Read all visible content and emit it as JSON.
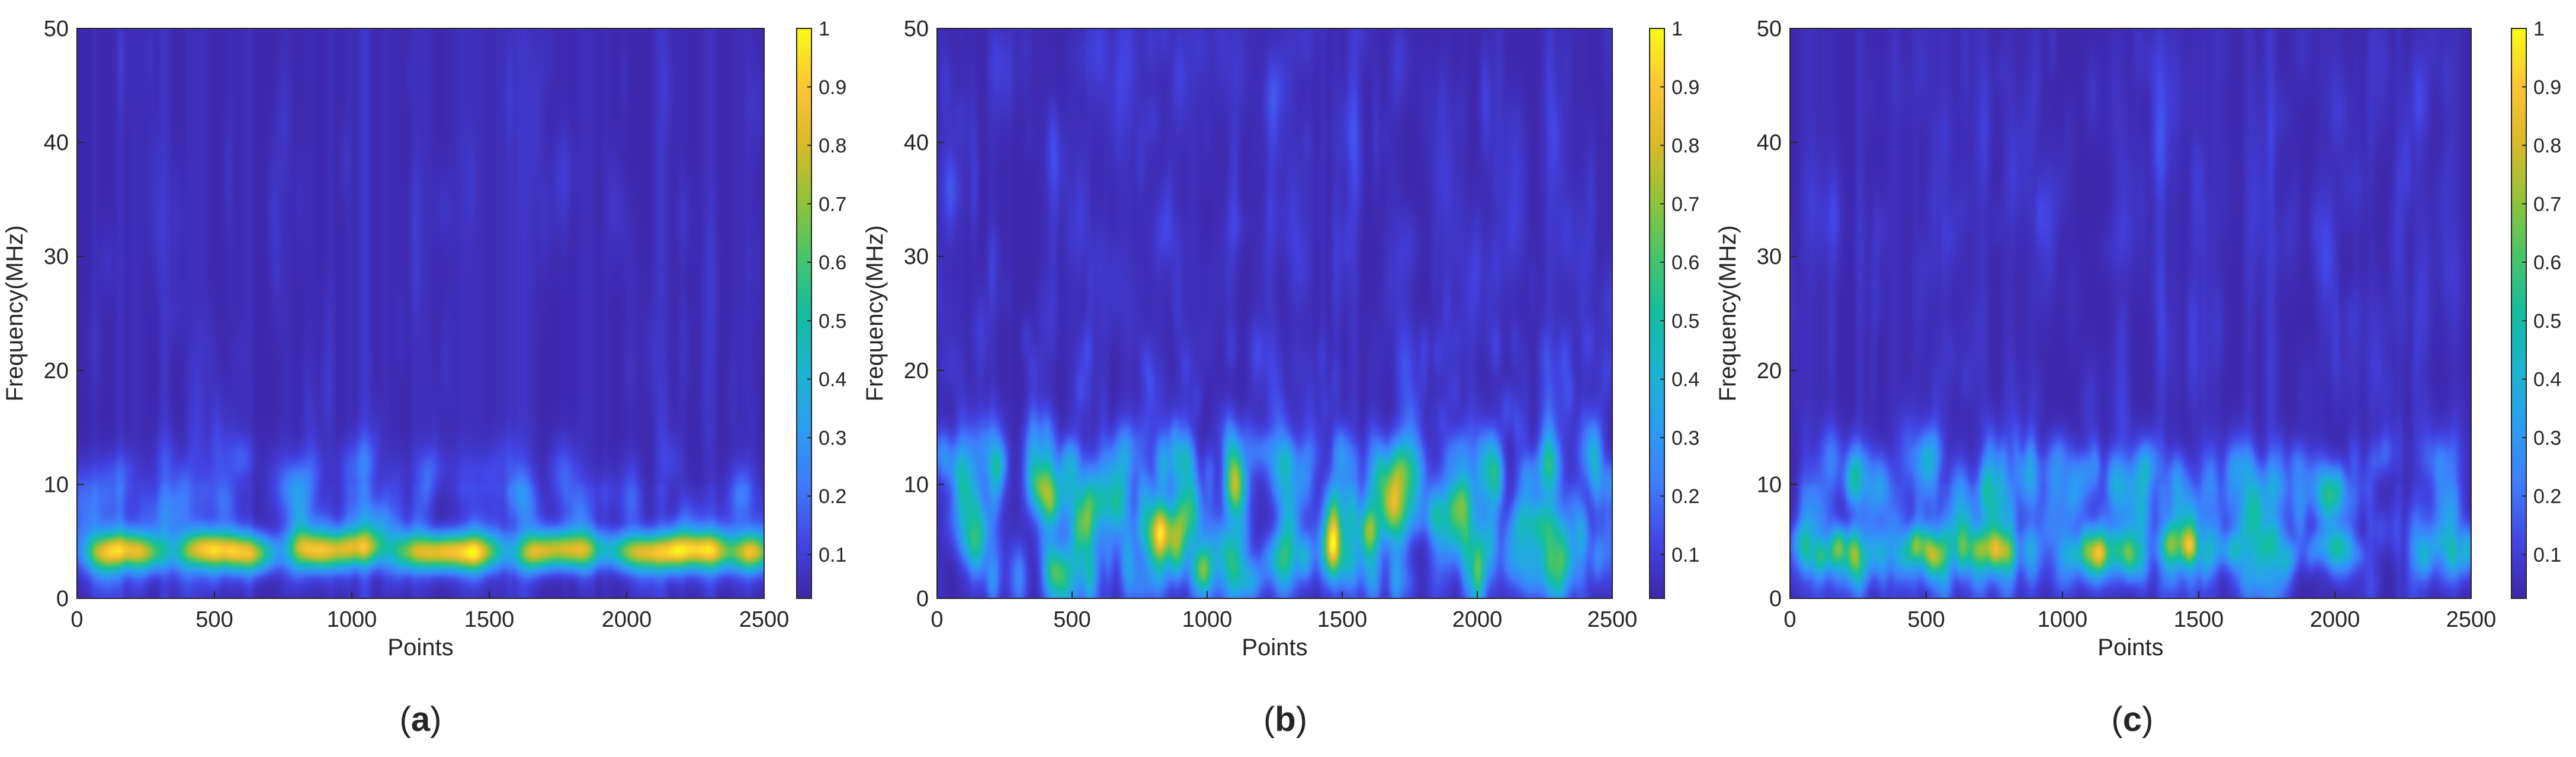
{
  "figure": {
    "panels": [
      {
        "caption": "a"
      },
      {
        "caption": "b"
      },
      {
        "caption": "c"
      }
    ]
  },
  "colors": {
    "background": "#3e26a8",
    "parula": [
      "#3e26a8",
      "#4245e4",
      "#3f7cfb",
      "#2b9df1",
      "#1cb4d0",
      "#13be9f",
      "#47c469",
      "#93c337",
      "#dbb92a",
      "#fcc534",
      "#f9fb15"
    ]
  },
  "chart_data": [
    {
      "type": "heatmap",
      "panel": "a",
      "caption": "a",
      "xlabel": "Points",
      "ylabel": "Frequency(MHz)",
      "xlim": [
        0,
        2500
      ],
      "ylim": [
        0,
        50
      ],
      "xticks": [
        "0",
        "500",
        "1000",
        "1500",
        "2000",
        "2500"
      ],
      "yticks": [
        "0",
        "10",
        "20",
        "30",
        "40",
        "50"
      ],
      "colorbar": {
        "range": [
          0,
          1
        ],
        "ticks": [
          "0.1",
          "0.2",
          "0.3",
          "0.4",
          "0.5",
          "0.6",
          "0.7",
          "0.8",
          "0.9",
          "1"
        ]
      },
      "description_bands": [
        {
          "freq_center_mhz": 4,
          "max_intensity": 0.95,
          "note": "strong band near 4 MHz in segments"
        },
        {
          "freq_center_mhz": 10,
          "max_intensity": 0.25
        }
      ],
      "segments": [
        [
          60,
          300
        ],
        [
          380,
          700
        ],
        [
          800,
          1090
        ],
        [
          1180,
          1530
        ],
        [
          1610,
          1900
        ],
        [
          1960,
          2350
        ],
        [
          2400,
          2500
        ]
      ],
      "seed": 11
    },
    {
      "type": "heatmap",
      "panel": "b",
      "caption": "b",
      "xlabel": "Points",
      "ylabel": "Frequency(MHz)",
      "xlim": [
        0,
        2500
      ],
      "ylim": [
        0,
        50
      ],
      "xticks": [
        "0",
        "500",
        "1000",
        "1500",
        "2000",
        "2500"
      ],
      "yticks": [
        "0",
        "10",
        "20",
        "30",
        "40",
        "50"
      ],
      "colorbar": {
        "range": [
          0,
          1
        ],
        "ticks": [
          "0.1",
          "0.2",
          "0.3",
          "0.4",
          "0.5",
          "0.6",
          "0.7",
          "0.8",
          "0.9",
          "1"
        ]
      },
      "description_bands": [
        {
          "freq_range_mhz": [
            0,
            13
          ],
          "max_intensity": 1.0,
          "note": "dense high energy 0-13 MHz"
        },
        {
          "freq_range_mhz": [
            13,
            50
          ],
          "max_intensity": 0.3
        }
      ],
      "seed": 29
    },
    {
      "type": "heatmap",
      "panel": "c",
      "caption": "c",
      "xlabel": "Points",
      "ylabel": "Frequency(MHz)",
      "xlim": [
        0,
        2500
      ],
      "ylim": [
        0,
        50
      ],
      "xticks": [
        "0",
        "500",
        "1000",
        "1500",
        "2000",
        "2500"
      ],
      "yticks": [
        "0",
        "10",
        "20",
        "30",
        "40",
        "50"
      ],
      "colorbar": {
        "range": [
          0,
          1
        ],
        "ticks": [
          "0.1",
          "0.2",
          "0.3",
          "0.4",
          "0.5",
          "0.6",
          "0.7",
          "0.8",
          "0.9",
          "1"
        ]
      },
      "description_bands": [
        {
          "freq_center_mhz": 4,
          "max_intensity": 0.85
        },
        {
          "freq_range_mhz": [
            0,
            13
          ],
          "max_intensity": 0.55
        },
        {
          "freq_range_mhz": [
            13,
            50
          ],
          "max_intensity": 0.25
        }
      ],
      "seed": 47
    }
  ]
}
